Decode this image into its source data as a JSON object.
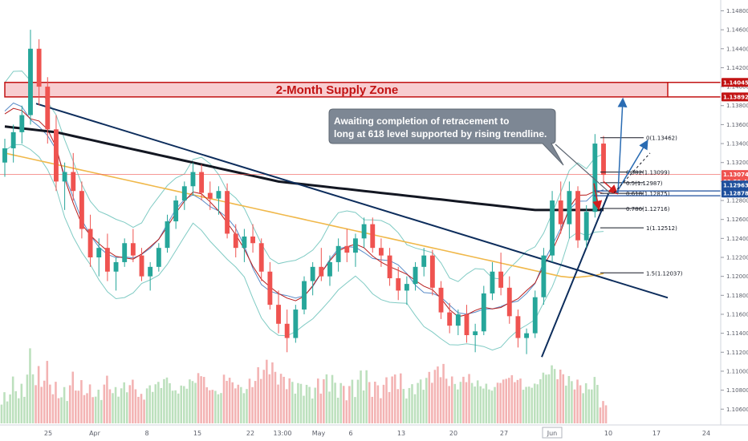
{
  "colors": {
    "up": "#26a69a",
    "down": "#ef5350",
    "vol_up": "#a5d6a7",
    "vol_down": "#ef9a9a",
    "ma200": "#131722",
    "ma_orange": "#f0b84a",
    "ma_red": "#b71c1c",
    "ma_blue": "#5a8cc8",
    "bollinger": "#80cbc4",
    "zone_fill": "#f8cdd0",
    "zone_border": "#c21313",
    "trendline": "#0d2d5c",
    "callout_fill": "#7d8794",
    "arrow_blue": "#2a6cb3",
    "arrow_red": "#d11f1f"
  },
  "chart_data": {
    "type": "candlestick",
    "title": "",
    "ylim": [
      1.1045,
      1.1488
    ],
    "y_ticks": [
      "1.14800",
      "1.14600",
      "1.14400",
      "1.14200",
      "1.14000",
      "1.13800",
      "1.13600",
      "1.13400",
      "1.13200",
      "1.13000",
      "1.12800",
      "1.12600",
      "1.12400",
      "1.12200",
      "1.12000",
      "1.11800",
      "1.11600",
      "1.11400",
      "1.11200",
      "1.11000",
      "1.10800",
      "1.10600"
    ],
    "x_ticks": [
      "25",
      "Apr",
      "8",
      "15",
      "22",
      "13:00",
      "May",
      "6",
      "13",
      "20",
      "27",
      "Jun",
      "10",
      "17",
      "24"
    ],
    "highlighted_x_tick": "Jun",
    "price_tags": [
      {
        "value": "1.14045",
        "price": 1.14045,
        "color": "#c21313"
      },
      {
        "value": "1.13892",
        "price": 1.13892,
        "color": "#c21313"
      },
      {
        "value": "1.13074",
        "price": 1.13074,
        "color": "#ef5350"
      },
      {
        "value": "03:59:45",
        "price": 1.13,
        "color": "#ef5350"
      },
      {
        "value": "1.12963",
        "price": 1.12963,
        "color": "#1e4f9c"
      },
      {
        "value": "1.12878",
        "price": 1.12878,
        "color": "#1e4f9c"
      }
    ],
    "fib_levels": [
      {
        "label": "0(1.13462)",
        "price": 1.13462
      },
      {
        "label": "0.382(1.13099)",
        "price": 1.13099
      },
      {
        "label": "0.5(1.12987)",
        "price": 1.12987
      },
      {
        "label": "0.618(1.12875)",
        "price": 1.12875
      },
      {
        "label": "0.786(1.12716)",
        "price": 1.12716
      },
      {
        "label": "1(1.12512)",
        "price": 1.12512
      },
      {
        "label": "1.5(1.12037)",
        "price": 1.12037
      }
    ],
    "supply_zone": {
      "label": "2-Month Supply Zone",
      "top": 1.14045,
      "bottom": 1.13892
    },
    "annotation": "Awaiting completion of retracement to long at 618 level supported by rising trendline.",
    "ohlc": [
      [
        1.132,
        1.1345,
        1.1305,
        1.1335
      ],
      [
        1.1335,
        1.136,
        1.132,
        1.1352
      ],
      [
        1.1352,
        1.138,
        1.134,
        1.137
      ],
      [
        1.137,
        1.146,
        1.136,
        1.144
      ],
      [
        1.144,
        1.145,
        1.138,
        1.14
      ],
      [
        1.14,
        1.141,
        1.134,
        1.1355
      ],
      [
        1.1355,
        1.137,
        1.129,
        1.13
      ],
      [
        1.13,
        1.132,
        1.127,
        1.131
      ],
      [
        1.131,
        1.133,
        1.128,
        1.129
      ],
      [
        1.129,
        1.13,
        1.124,
        1.125
      ],
      [
        1.125,
        1.1265,
        1.121,
        1.122
      ],
      [
        1.122,
        1.124,
        1.12,
        1.123
      ],
      [
        1.123,
        1.1245,
        1.1195,
        1.1205
      ],
      [
        1.1205,
        1.122,
        1.1185,
        1.1215
      ],
      [
        1.1215,
        1.124,
        1.121,
        1.1235
      ],
      [
        1.1235,
        1.125,
        1.1215,
        1.1222
      ],
      [
        1.1222,
        1.123,
        1.1195,
        1.12
      ],
      [
        1.12,
        1.1215,
        1.1185,
        1.121
      ],
      [
        1.121,
        1.1235,
        1.1205,
        1.123
      ],
      [
        1.123,
        1.1265,
        1.1225,
        1.1258
      ],
      [
        1.1258,
        1.1285,
        1.125,
        1.128
      ],
      [
        1.128,
        1.13,
        1.127,
        1.1295
      ],
      [
        1.1295,
        1.132,
        1.1285,
        1.131
      ],
      [
        1.131,
        1.1318,
        1.128,
        1.1288
      ],
      [
        1.1288,
        1.13,
        1.127,
        1.1282
      ],
      [
        1.1282,
        1.1295,
        1.1265,
        1.129
      ],
      [
        1.129,
        1.1298,
        1.124,
        1.1245
      ],
      [
        1.1245,
        1.1255,
        1.122,
        1.123
      ],
      [
        1.123,
        1.125,
        1.1215,
        1.1242
      ],
      [
        1.1242,
        1.1255,
        1.1225,
        1.1235
      ],
      [
        1.1235,
        1.124,
        1.1195,
        1.1205
      ],
      [
        1.1205,
        1.1215,
        1.1165,
        1.117
      ],
      [
        1.117,
        1.1185,
        1.114,
        1.115
      ],
      [
        1.115,
        1.1165,
        1.112,
        1.1135
      ],
      [
        1.1135,
        1.117,
        1.113,
        1.1165
      ],
      [
        1.1165,
        1.12,
        1.116,
        1.1195
      ],
      [
        1.1195,
        1.1215,
        1.118,
        1.121
      ],
      [
        1.121,
        1.123,
        1.1195,
        1.12
      ],
      [
        1.12,
        1.1222,
        1.119,
        1.1215
      ],
      [
        1.1215,
        1.124,
        1.1205,
        1.1232
      ],
      [
        1.1232,
        1.125,
        1.1215,
        1.1225
      ],
      [
        1.1225,
        1.1245,
        1.121,
        1.124
      ],
      [
        1.124,
        1.1262,
        1.123,
        1.1255
      ],
      [
        1.1255,
        1.1262,
        1.1225,
        1.123
      ],
      [
        1.123,
        1.124,
        1.121,
        1.1222
      ],
      [
        1.1222,
        1.123,
        1.119,
        1.1198
      ],
      [
        1.1198,
        1.121,
        1.1175,
        1.1185
      ],
      [
        1.1185,
        1.12,
        1.117,
        1.1192
      ],
      [
        1.1192,
        1.1215,
        1.1185,
        1.121
      ],
      [
        1.121,
        1.123,
        1.12,
        1.1222
      ],
      [
        1.1222,
        1.1228,
        1.118,
        1.1188
      ],
      [
        1.1188,
        1.1195,
        1.1155,
        1.1162
      ],
      [
        1.1162,
        1.1172,
        1.114,
        1.1148
      ],
      [
        1.1148,
        1.1165,
        1.1138,
        1.116
      ],
      [
        1.116,
        1.117,
        1.113,
        1.1138
      ],
      [
        1.1138,
        1.115,
        1.112,
        1.1142
      ],
      [
        1.1142,
        1.119,
        1.1138,
        1.1182
      ],
      [
        1.1182,
        1.1215,
        1.1175,
        1.1205
      ],
      [
        1.1205,
        1.1225,
        1.118,
        1.1188
      ],
      [
        1.1188,
        1.12,
        1.115,
        1.1158
      ],
      [
        1.1158,
        1.1165,
        1.1125,
        1.1135
      ],
      [
        1.1135,
        1.1145,
        1.1118,
        1.114
      ],
      [
        1.114,
        1.1185,
        1.1135,
        1.1178
      ],
      [
        1.1178,
        1.123,
        1.117,
        1.1222
      ],
      [
        1.1222,
        1.129,
        1.1215,
        1.128
      ],
      [
        1.128,
        1.13,
        1.1245,
        1.1255
      ],
      [
        1.1255,
        1.13,
        1.124,
        1.129
      ],
      [
        1.129,
        1.1295,
        1.123,
        1.1238
      ],
      [
        1.1238,
        1.1275,
        1.123,
        1.1268
      ],
      [
        1.1268,
        1.135,
        1.1262,
        1.134
      ],
      [
        1.134,
        1.1348,
        1.13,
        1.1307
      ]
    ],
    "volume": [
      0.3,
      0.45,
      0.38,
      0.72,
      0.55,
      0.6,
      0.4,
      0.35,
      0.5,
      0.42,
      0.38,
      0.33,
      0.47,
      0.36,
      0.41,
      0.44,
      0.3,
      0.39,
      0.43,
      0.48,
      0.35,
      0.4,
      0.46,
      0.52,
      0.37,
      0.33,
      0.49,
      0.41,
      0.36,
      0.44,
      0.55,
      0.62,
      0.5,
      0.45,
      0.4,
      0.38,
      0.35,
      0.43,
      0.47,
      0.39,
      0.36,
      0.42,
      0.51,
      0.4,
      0.37,
      0.45,
      0.48,
      0.34,
      0.39,
      0.44,
      0.52,
      0.58,
      0.46,
      0.41,
      0.49,
      0.43,
      0.4,
      0.37,
      0.45,
      0.5,
      0.47,
      0.39,
      0.42,
      0.53,
      0.6,
      0.55,
      0.48,
      0.44,
      0.4,
      0.46,
      0.22
    ],
    "ma200": [
      1.1358,
      1.1357,
      1.1356,
      1.1355,
      1.1354,
      1.1353,
      1.1352,
      1.135,
      1.1348,
      1.1346,
      1.1344,
      1.1342,
      1.134,
      1.1338,
      1.1336,
      1.1334,
      1.1332,
      1.133,
      1.1328,
      1.1326,
      1.1324,
      1.1322,
      1.132,
      1.1318,
      1.1316,
      1.1314,
      1.1312,
      1.131,
      1.1308,
      1.1306,
      1.1304,
      1.1302,
      1.13,
      1.1299,
      1.1298,
      1.1297,
      1.1296,
      1.1295,
      1.1294,
      1.1293,
      1.1292,
      1.1291,
      1.129,
      1.1289,
      1.1288,
      1.1287,
      1.1286,
      1.1285,
      1.1284,
      1.1283,
      1.1282,
      1.1281,
      1.128,
      1.1279,
      1.1278,
      1.1277,
      1.1276,
      1.1275,
      1.1274,
      1.1273,
      1.1272,
      1.1271,
      1.127,
      1.127,
      1.127,
      1.127,
      1.127,
      1.127,
      1.127,
      1.127,
      1.127
    ],
    "ma_orange": [
      1.133,
      1.1328,
      1.1326,
      1.1324,
      1.1322,
      1.132,
      1.1318,
      1.1316,
      1.1314,
      1.1312,
      1.131,
      1.1308,
      1.1306,
      1.1304,
      1.1302,
      1.13,
      1.1298,
      1.1296,
      1.1294,
      1.1292,
      1.129,
      1.1288,
      1.1286,
      1.1284,
      1.1282,
      1.128,
      1.1278,
      1.1276,
      1.1274,
      1.1272,
      1.127,
      1.1268,
      1.1266,
      1.1264,
      1.1262,
      1.126,
      1.1258,
      1.1256,
      1.1254,
      1.1252,
      1.125,
      1.1248,
      1.1246,
      1.1244,
      1.1242,
      1.124,
      1.1238,
      1.1236,
      1.1234,
      1.1232,
      1.123,
      1.1228,
      1.1226,
      1.1224,
      1.1222,
      1.122,
      1.1218,
      1.1216,
      1.1214,
      1.1212,
      1.121,
      1.1208,
      1.1206,
      1.1204,
      1.1202,
      1.12,
      1.1199,
      1.1199,
      1.12,
      1.1201,
      1.1203
    ]
  }
}
